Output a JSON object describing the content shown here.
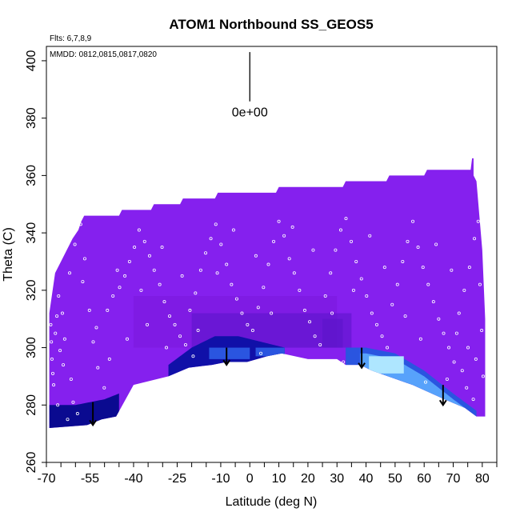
{
  "chart_data": {
    "type": "heatmap",
    "title": "ATOM1 Northbound SS_GEOS5",
    "subtitle_flights": "Flts: 6,7,8,9",
    "subtitle_dates": "MMDD: 0812,0815,0817,0820",
    "xlabel": "Latitude (deg N)",
    "ylabel": "Theta (C)",
    "xlim": [
      -70,
      85
    ],
    "ylim": [
      260,
      405
    ],
    "x_ticks_labeled": [
      -70,
      -55,
      -40,
      -25,
      -10,
      0,
      10,
      20,
      30,
      40,
      50,
      60,
      70,
      80
    ],
    "x_ticks_minor": [
      -65,
      -60,
      -50,
      -45,
      -35,
      -30,
      -20,
      -15,
      -5,
      5,
      15,
      25,
      35,
      45,
      55,
      65,
      75,
      85
    ],
    "y_ticks": [
      260,
      280,
      300,
      320,
      340,
      360,
      380,
      400
    ],
    "legend_value_label": "0e+00",
    "colors": {
      "background_field": "#8520ee",
      "field_dark": "#7a18dd",
      "field_mid": "#5a14c8",
      "blue_dark": "#1010a8",
      "blue_navy": "#0a0a90",
      "blue_mid": "#2a55e0",
      "blue_light": "#5fb0ff",
      "cyan": "#aee6ff",
      "point_color": "#ffffff",
      "arrow_color": "#000000"
    },
    "field_top_profile": [
      [
        -69,
        312
      ],
      [
        -67,
        326
      ],
      [
        -65,
        330
      ],
      [
        -63,
        334
      ],
      [
        -62,
        336
      ],
      [
        -61,
        338
      ],
      [
        -59,
        341
      ],
      [
        -58,
        344
      ],
      [
        -57,
        346
      ],
      [
        -45,
        346
      ],
      [
        -44,
        348
      ],
      [
        -34,
        348
      ],
      [
        -33,
        350
      ],
      [
        -24,
        350
      ],
      [
        -23,
        352
      ],
      [
        -12,
        352
      ],
      [
        -11,
        354
      ],
      [
        9,
        354
      ],
      [
        10,
        356
      ],
      [
        32,
        356
      ],
      [
        33,
        358
      ],
      [
        47,
        358
      ],
      [
        48,
        360
      ],
      [
        60,
        360
      ],
      [
        61,
        362
      ],
      [
        76,
        362
      ],
      [
        76.5,
        366
      ],
      [
        77,
        366
      ],
      [
        77,
        360
      ],
      [
        78,
        358
      ],
      [
        79,
        346
      ],
      [
        80,
        334
      ],
      [
        81,
        310
      ]
    ],
    "field_bottom_profile": [
      [
        81,
        276
      ],
      [
        78,
        276
      ],
      [
        74,
        279
      ],
      [
        67,
        282
      ],
      [
        56,
        287
      ],
      [
        42,
        292
      ],
      [
        38,
        294
      ],
      [
        33,
        294
      ],
      [
        30,
        296
      ],
      [
        20,
        296
      ],
      [
        11,
        298
      ],
      [
        6,
        297
      ],
      [
        -1,
        295
      ],
      [
        -8,
        295
      ],
      [
        -13,
        294
      ],
      [
        -21,
        293
      ],
      [
        -28,
        290
      ],
      [
        -40,
        287
      ],
      [
        -46,
        276
      ],
      [
        -51,
        275
      ],
      [
        -56,
        273
      ],
      [
        -69,
        272
      ]
    ],
    "enhancement_bands": [
      {
        "name": "southern-lower-band",
        "x_range": [
          -69,
          -45
        ],
        "color": "blue_navy",
        "top": [
          [
            -69,
            280
          ],
          [
            -60,
            280
          ],
          [
            -50,
            282
          ],
          [
            -45,
            284
          ]
        ]
      },
      {
        "name": "tropical-band",
        "x_range": [
          -28,
          12
        ],
        "color": "blue_dark",
        "top": [
          [
            -28,
            294
          ],
          [
            -20,
            300
          ],
          [
            -12,
            304
          ],
          [
            -4,
            304
          ],
          [
            4,
            302
          ],
          [
            12,
            300
          ]
        ]
      },
      {
        "name": "northern-band",
        "x_range": [
          33,
          78
        ],
        "color": "blue_mid",
        "top": [
          [
            33,
            300
          ],
          [
            40,
            300
          ],
          [
            50,
            298
          ],
          [
            60,
            292
          ],
          [
            70,
            284
          ],
          [
            78,
            278
          ]
        ]
      }
    ],
    "cyan_core": {
      "x_range": [
        41,
        53
      ],
      "theta_range": [
        291,
        297
      ]
    },
    "arrows": [
      {
        "lat": -54,
        "theta_top": 281,
        "theta_bottom": 273
      },
      {
        "lat": -8,
        "theta_top": 300,
        "theta_bottom": 294
      },
      {
        "lat": 38.5,
        "theta_top": 300,
        "theta_bottom": 293
      },
      {
        "lat": 66.5,
        "theta_top": 287,
        "theta_bottom": 280
      }
    ],
    "legend_marker": {
      "lat": 0,
      "theta_top": 398,
      "theta_bottom": 385
    },
    "observation_points": [
      [
        -68.5,
        308
      ],
      [
        -68.3,
        302
      ],
      [
        -68.1,
        296
      ],
      [
        -67.8,
        291
      ],
      [
        -67.5,
        287
      ],
      [
        -66.9,
        305
      ],
      [
        -66.4,
        311
      ],
      [
        -65.8,
        318
      ],
      [
        -64.5,
        312
      ],
      [
        -63.7,
        303
      ],
      [
        -64.2,
        294
      ],
      [
        -61.5,
        289
      ],
      [
        -60.8,
        281
      ],
      [
        -62.0,
        326
      ],
      [
        -60.2,
        336
      ],
      [
        -58.2,
        343
      ],
      [
        -56.8,
        331
      ],
      [
        -55.2,
        313
      ],
      [
        -53.9,
        302
      ],
      [
        -52.3,
        293
      ],
      [
        -50.1,
        286
      ],
      [
        -52.8,
        307
      ],
      [
        -49.0,
        313
      ],
      [
        -47.1,
        318
      ],
      [
        -44.8,
        321
      ],
      [
        -43.0,
        325
      ],
      [
        -41.4,
        330
      ],
      [
        -39.7,
        335
      ],
      [
        -38.1,
        341
      ],
      [
        -36.2,
        337
      ],
      [
        -34.5,
        332
      ],
      [
        -32.9,
        327
      ],
      [
        -31.0,
        322
      ],
      [
        -29.4,
        316
      ],
      [
        -27.6,
        311
      ],
      [
        -25.8,
        308
      ],
      [
        -24.0,
        304
      ],
      [
        -22.1,
        301
      ],
      [
        -20.6,
        313
      ],
      [
        -18.7,
        319
      ],
      [
        -16.9,
        327
      ],
      [
        -15.2,
        333
      ],
      [
        -13.4,
        338
      ],
      [
        -11.7,
        343
      ],
      [
        -9.9,
        336
      ],
      [
        -8.0,
        329
      ],
      [
        -6.3,
        322
      ],
      [
        -4.5,
        317
      ],
      [
        -2.7,
        312
      ],
      [
        -0.8,
        308
      ],
      [
        1.0,
        306
      ],
      [
        2.9,
        314
      ],
      [
        4.7,
        321
      ],
      [
        6.4,
        329
      ],
      [
        8.2,
        337
      ],
      [
        10.0,
        344
      ],
      [
        11.8,
        339
      ],
      [
        13.6,
        331
      ],
      [
        15.3,
        326
      ],
      [
        17.1,
        320
      ],
      [
        18.9,
        313
      ],
      [
        20.6,
        309
      ],
      [
        22.4,
        304
      ],
      [
        24.2,
        301
      ],
      [
        26.0,
        318
      ],
      [
        27.8,
        326
      ],
      [
        29.5,
        334
      ],
      [
        31.3,
        341
      ],
      [
        33.1,
        345
      ],
      [
        34.9,
        337
      ],
      [
        36.6,
        330
      ],
      [
        38.4,
        324
      ],
      [
        40.2,
        318
      ],
      [
        42.0,
        312
      ],
      [
        43.7,
        308
      ],
      [
        45.5,
        304
      ],
      [
        47.3,
        300
      ],
      [
        49.0,
        315
      ],
      [
        50.8,
        322
      ],
      [
        52.6,
        330
      ],
      [
        54.3,
        337
      ],
      [
        56.1,
        344
      ],
      [
        57.9,
        335
      ],
      [
        59.6,
        328
      ],
      [
        61.4,
        322
      ],
      [
        63.2,
        316
      ],
      [
        65.0,
        310
      ],
      [
        66.7,
        305
      ],
      [
        68.5,
        300
      ],
      [
        70.3,
        295
      ],
      [
        72.0,
        312
      ],
      [
        73.8,
        320
      ],
      [
        75.6,
        328
      ],
      [
        77.3,
        338
      ],
      [
        78.6,
        344
      ],
      [
        79.2,
        322
      ],
      [
        79.8,
        306
      ],
      [
        80.3,
        290
      ],
      [
        74.6,
        286
      ],
      [
        76.9,
        282
      ],
      [
        -65.3,
        299
      ],
      [
        -57.5,
        323
      ],
      [
        -45.6,
        327
      ],
      [
        -37.4,
        320
      ],
      [
        -30.2,
        335
      ],
      [
        -23.3,
        325
      ],
      [
        -17.8,
        306
      ],
      [
        -11.2,
        326
      ],
      [
        -5.6,
        341
      ],
      [
        2.1,
        332
      ],
      [
        7.4,
        312
      ],
      [
        14.7,
        342
      ],
      [
        21.8,
        334
      ],
      [
        28.3,
        312
      ],
      [
        35.7,
        320
      ],
      [
        41.3,
        339
      ],
      [
        46.4,
        328
      ],
      [
        53.5,
        311
      ],
      [
        58.8,
        303
      ],
      [
        64.1,
        336
      ],
      [
        69.4,
        327
      ],
      [
        71.2,
        305
      ],
      [
        75.1,
        300
      ],
      [
        77.8,
        296
      ],
      [
        -48.3,
        296
      ],
      [
        -42.2,
        303
      ],
      [
        -35.3,
        308
      ],
      [
        -28.7,
        300
      ],
      [
        -19.5,
        297
      ],
      [
        3.8,
        298
      ],
      [
        12.6,
        297
      ],
      [
        32.2,
        295
      ],
      [
        -62.7,
        275
      ],
      [
        -59.3,
        277
      ],
      [
        -66.1,
        280
      ],
      [
        60.5,
        288
      ],
      [
        67.9,
        289
      ],
      [
        73.1,
        292
      ]
    ]
  }
}
